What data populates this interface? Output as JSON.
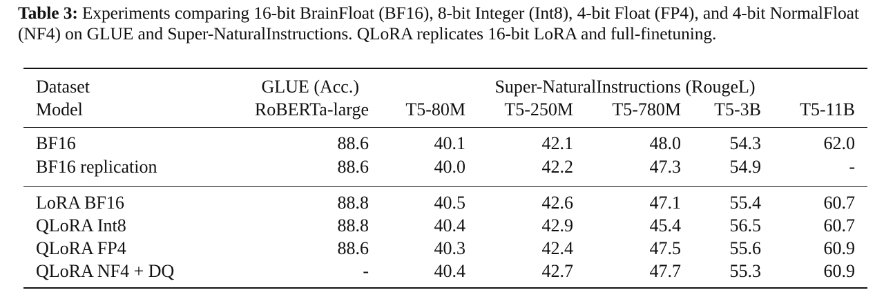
{
  "caption": {
    "label": "Table 3:",
    "text": "Experiments comparing 16-bit BrainFloat (BF16), 8-bit Integer (Int8), 4-bit Float (FP4), and 4-bit NormalFloat (NF4) on GLUE and Super-NaturalInstructions. QLoRA replicates 16-bit LoRA and full-finetuning."
  },
  "header": {
    "dataset_label": "Dataset",
    "model_label": "Model",
    "glue_group": "GLUE (Acc.)",
    "sni_group": "Super-NaturalInstructions (RougeL)",
    "models": [
      "RoBERTa-large",
      "T5-80M",
      "T5-250M",
      "T5-780M",
      "T5-3B",
      "T5-11B"
    ]
  },
  "groups": [
    {
      "rows": [
        {
          "name": "BF16",
          "values": [
            "88.6",
            "40.1",
            "42.1",
            "48.0",
            "54.3",
            "62.0"
          ]
        },
        {
          "name": "BF16 replication",
          "values": [
            "88.6",
            "40.0",
            "42.2",
            "47.3",
            "54.9",
            "-"
          ]
        }
      ]
    },
    {
      "rows": [
        {
          "name": "LoRA BF16",
          "values": [
            "88.8",
            "40.5",
            "42.6",
            "47.1",
            "55.4",
            "60.7"
          ]
        },
        {
          "name": "QLoRA Int8",
          "values": [
            "88.8",
            "40.4",
            "42.9",
            "45.4",
            "56.5",
            "60.7"
          ]
        },
        {
          "name": "QLoRA FP4",
          "values": [
            "88.6",
            "40.3",
            "42.4",
            "47.5",
            "55.6",
            "60.9"
          ]
        },
        {
          "name": "QLoRA NF4 + DQ",
          "values": [
            "-",
            "40.4",
            "42.7",
            "47.7",
            "55.3",
            "60.9"
          ]
        }
      ]
    }
  ]
}
